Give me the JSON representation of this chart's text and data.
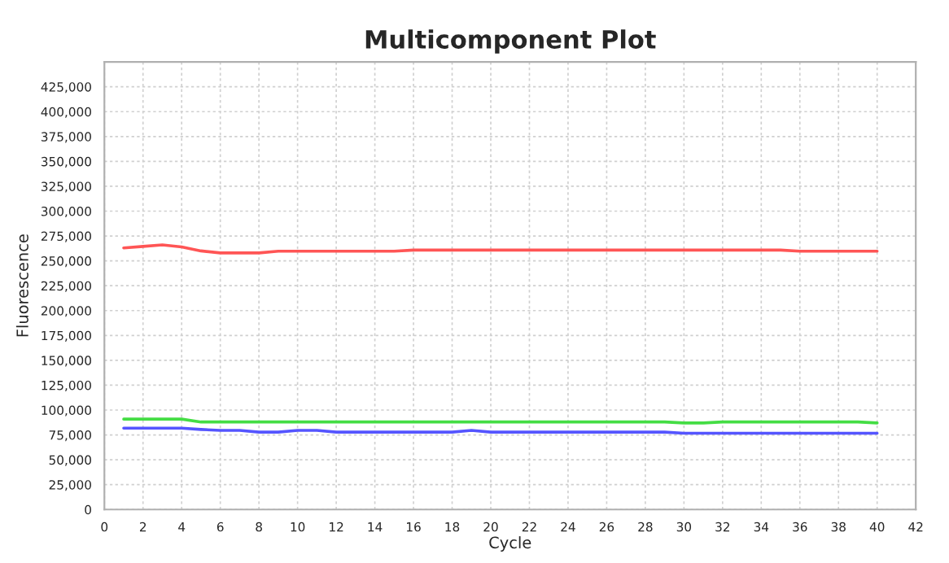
{
  "chart_data": {
    "type": "line",
    "title": "Multicomponent Plot",
    "xlabel": "Cycle",
    "ylabel": "Fluorescence",
    "x": [
      1,
      2,
      3,
      4,
      5,
      6,
      7,
      8,
      9,
      10,
      11,
      12,
      13,
      14,
      15,
      16,
      17,
      18,
      19,
      20,
      21,
      22,
      23,
      24,
      25,
      26,
      27,
      28,
      29,
      30,
      31,
      32,
      33,
      34,
      35,
      36,
      37,
      38,
      39,
      40
    ],
    "series": [
      {
        "color": "#ff5555",
        "values": [
          263000,
          264500,
          266000,
          264000,
          260000,
          258000,
          258000,
          258000,
          259700,
          259700,
          259700,
          259700,
          259700,
          259700,
          259700,
          260800,
          260800,
          260800,
          260800,
          260800,
          260800,
          260800,
          260800,
          260800,
          260800,
          260800,
          260800,
          260800,
          260800,
          260800,
          260800,
          260800,
          260800,
          260800,
          260800,
          259700,
          259700,
          259700,
          259700,
          259700
        ]
      },
      {
        "color": "#44dd44",
        "values": [
          90900,
          90900,
          90900,
          90900,
          88000,
          88000,
          88000,
          88000,
          88000,
          88000,
          88000,
          88000,
          88000,
          88000,
          88000,
          88000,
          88000,
          88000,
          88000,
          88000,
          88000,
          88000,
          88000,
          88000,
          88000,
          88000,
          88000,
          88000,
          88000,
          87000,
          87000,
          88000,
          88000,
          88000,
          88000,
          88000,
          88000,
          88000,
          88000,
          87000
        ]
      },
      {
        "color": "#5555ff",
        "values": [
          81800,
          81800,
          81800,
          81800,
          80500,
          79500,
          79500,
          77800,
          77800,
          79500,
          79500,
          77800,
          77800,
          77800,
          77800,
          77800,
          77800,
          77800,
          79500,
          77800,
          77800,
          77800,
          77800,
          77800,
          77800,
          77800,
          77800,
          77800,
          77800,
          76700,
          76700,
          76700,
          76700,
          76700,
          76700,
          76700,
          76700,
          76700,
          76700,
          76700
        ]
      }
    ],
    "xlim": [
      0,
      42
    ],
    "xticks": [
      0,
      2,
      4,
      6,
      8,
      10,
      12,
      14,
      16,
      18,
      20,
      22,
      24,
      26,
      28,
      30,
      32,
      34,
      36,
      38,
      40,
      42
    ],
    "ylim": [
      0,
      450000
    ],
    "yticks": [
      {
        "value": 0,
        "label": "0"
      },
      {
        "value": 25000,
        "label": "25,000"
      },
      {
        "value": 50000,
        "label": "50,000"
      },
      {
        "value": 75000,
        "label": "75,000"
      },
      {
        "value": 100000,
        "label": "100,000"
      },
      {
        "value": 125000,
        "label": "125,000"
      },
      {
        "value": 150000,
        "label": "150,000"
      },
      {
        "value": 175000,
        "label": "175,000"
      },
      {
        "value": 200000,
        "label": "200,000"
      },
      {
        "value": 225000,
        "label": "225,000"
      },
      {
        "value": 250000,
        "label": "250,000"
      },
      {
        "value": 275000,
        "label": "275,000"
      },
      {
        "value": 300000,
        "label": "300,000"
      },
      {
        "value": 325000,
        "label": "325,000"
      },
      {
        "value": 350000,
        "label": "350,000"
      },
      {
        "value": 375000,
        "label": "375,000"
      },
      {
        "value": 400000,
        "label": "400,000"
      },
      {
        "value": 425000,
        "label": "425,000"
      }
    ],
    "grid": true,
    "legend": false,
    "marker": "none",
    "line_style": "solid"
  }
}
